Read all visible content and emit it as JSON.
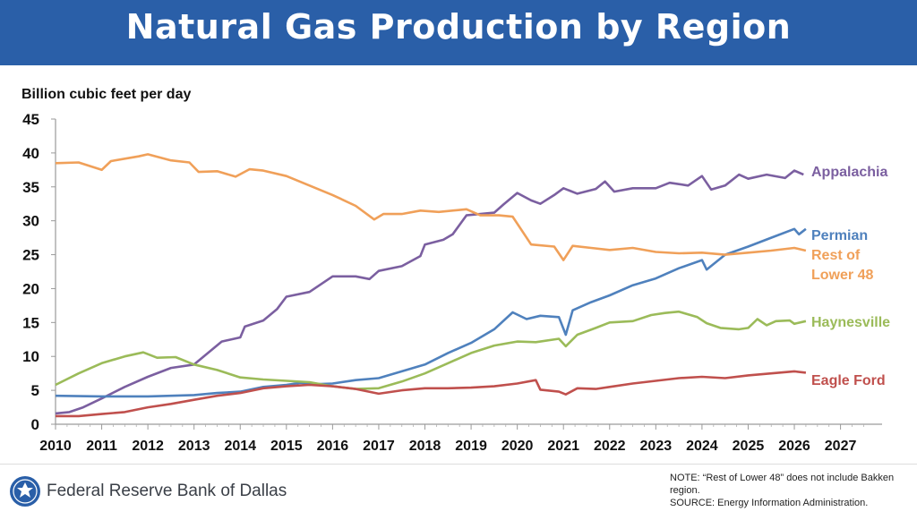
{
  "header": {
    "title": "Natural Gas Production by Region"
  },
  "footer": {
    "org": "Federal Reserve Bank of Dallas",
    "note": "NOTE: “Rest of Lower 48” does not include Bakken region.",
    "source": "SOURCE: Energy Information Administration."
  },
  "colors": {
    "banner": "#2a5fa8",
    "appalachia": "#7b5fa0",
    "permian": "#4f81bd",
    "rest_of_lower_48": "#f0a059",
    "haynesville": "#9bbb59",
    "eagle_ford": "#c0504d"
  },
  "chart_data": {
    "type": "line",
    "title": "Natural Gas Production by Region",
    "ylabel": "Billion cubic feet per day",
    "xlabel": "",
    "xlim": [
      2010,
      2027.9
    ],
    "ylim": [
      0,
      45
    ],
    "x_ticks": [
      "2010",
      "2011",
      "2012",
      "2013",
      "2014",
      "2015",
      "2016",
      "2017",
      "2018",
      "2019",
      "2020",
      "2021",
      "2022",
      "2023",
      "2024",
      "2025",
      "2026",
      "2027"
    ],
    "y_ticks": [
      "0",
      "5",
      "10",
      "15",
      "20",
      "25",
      "30",
      "35",
      "40",
      "45"
    ],
    "grid": false,
    "legend": "direct labels at right end of lines",
    "series": [
      {
        "name": "Appalachia",
        "label_lines": [
          "Appalachia"
        ],
        "color_key": "appalachia",
        "points": [
          [
            2010,
            1.6
          ],
          [
            2010.3,
            1.8
          ],
          [
            2010.6,
            2.5
          ],
          [
            2011,
            3.8
          ],
          [
            2011.5,
            5.5
          ],
          [
            2012,
            7.0
          ],
          [
            2012.5,
            8.3
          ],
          [
            2013,
            8.8
          ],
          [
            2013.3,
            10.5
          ],
          [
            2013.6,
            12.2
          ],
          [
            2014,
            12.8
          ],
          [
            2014.1,
            14.4
          ],
          [
            2014.5,
            15.3
          ],
          [
            2014.8,
            17.0
          ],
          [
            2015,
            18.8
          ],
          [
            2015.5,
            19.5
          ],
          [
            2016,
            21.8
          ],
          [
            2016.5,
            21.8
          ],
          [
            2016.8,
            21.4
          ],
          [
            2017,
            22.6
          ],
          [
            2017.5,
            23.3
          ],
          [
            2017.9,
            24.8
          ],
          [
            2018,
            26.5
          ],
          [
            2018.4,
            27.2
          ],
          [
            2018.6,
            28.0
          ],
          [
            2018.9,
            30.8
          ],
          [
            2019.2,
            31.0
          ],
          [
            2019.5,
            31.2
          ],
          [
            2019.7,
            32.4
          ],
          [
            2020,
            34.1
          ],
          [
            2020.3,
            33.0
          ],
          [
            2020.5,
            32.5
          ],
          [
            2020.8,
            33.8
          ],
          [
            2021,
            34.8
          ],
          [
            2021.3,
            34.0
          ],
          [
            2021.7,
            34.7
          ],
          [
            2021.9,
            35.8
          ],
          [
            2022.1,
            34.3
          ],
          [
            2022.5,
            34.8
          ],
          [
            2023,
            34.8
          ],
          [
            2023.3,
            35.6
          ],
          [
            2023.7,
            35.2
          ],
          [
            2024,
            36.6
          ],
          [
            2024.2,
            34.6
          ],
          [
            2024.5,
            35.2
          ],
          [
            2024.8,
            36.8
          ],
          [
            2025,
            36.2
          ],
          [
            2025.4,
            36.8
          ],
          [
            2025.8,
            36.3
          ],
          [
            2026,
            37.4
          ],
          [
            2026.2,
            36.8
          ]
        ]
      },
      {
        "name": "Permian",
        "label_lines": [
          "Permian"
        ],
        "color_key": "permian",
        "points": [
          [
            2010,
            4.2
          ],
          [
            2011,
            4.1
          ],
          [
            2012,
            4.1
          ],
          [
            2013,
            4.3
          ],
          [
            2013.5,
            4.6
          ],
          [
            2014,
            4.8
          ],
          [
            2014.5,
            5.5
          ],
          [
            2015,
            5.8
          ],
          [
            2015.3,
            6.1
          ],
          [
            2015.6,
            5.9
          ],
          [
            2016,
            6.0
          ],
          [
            2016.5,
            6.5
          ],
          [
            2017,
            6.8
          ],
          [
            2017.5,
            7.8
          ],
          [
            2018,
            8.8
          ],
          [
            2018.5,
            10.5
          ],
          [
            2019,
            12.0
          ],
          [
            2019.5,
            14.0
          ],
          [
            2019.9,
            16.5
          ],
          [
            2020.2,
            15.5
          ],
          [
            2020.5,
            16.0
          ],
          [
            2020.9,
            15.8
          ],
          [
            2021.05,
            13.2
          ],
          [
            2021.2,
            16.8
          ],
          [
            2021.6,
            18.0
          ],
          [
            2022,
            19.0
          ],
          [
            2022.5,
            20.5
          ],
          [
            2023,
            21.5
          ],
          [
            2023.5,
            23.0
          ],
          [
            2024,
            24.2
          ],
          [
            2024.1,
            22.8
          ],
          [
            2024.5,
            25.0
          ],
          [
            2025,
            26.2
          ],
          [
            2025.5,
            27.5
          ],
          [
            2026,
            28.8
          ],
          [
            2026.1,
            28.0
          ],
          [
            2026.25,
            28.8
          ]
        ]
      },
      {
        "name": "Rest of Lower 48",
        "label_lines": [
          "Rest of",
          "Lower 48"
        ],
        "color_key": "rest_of_lower_48",
        "points": [
          [
            2010,
            38.5
          ],
          [
            2010.5,
            38.6
          ],
          [
            2011,
            37.5
          ],
          [
            2011.2,
            38.8
          ],
          [
            2011.8,
            39.5
          ],
          [
            2012,
            39.8
          ],
          [
            2012.5,
            38.9
          ],
          [
            2012.9,
            38.6
          ],
          [
            2013.1,
            37.2
          ],
          [
            2013.5,
            37.3
          ],
          [
            2013.9,
            36.5
          ],
          [
            2014.2,
            37.6
          ],
          [
            2014.5,
            37.4
          ],
          [
            2015,
            36.6
          ],
          [
            2015.5,
            35.2
          ],
          [
            2016,
            33.8
          ],
          [
            2016.5,
            32.2
          ],
          [
            2016.9,
            30.2
          ],
          [
            2017.1,
            31.0
          ],
          [
            2017.5,
            31.0
          ],
          [
            2017.9,
            31.5
          ],
          [
            2018.3,
            31.3
          ],
          [
            2018.9,
            31.7
          ],
          [
            2019.2,
            30.8
          ],
          [
            2019.6,
            30.8
          ],
          [
            2019.9,
            30.6
          ],
          [
            2020.3,
            26.5
          ],
          [
            2020.8,
            26.2
          ],
          [
            2021,
            24.2
          ],
          [
            2021.2,
            26.3
          ],
          [
            2021.6,
            26.0
          ],
          [
            2022,
            25.7
          ],
          [
            2022.5,
            26.0
          ],
          [
            2023,
            25.4
          ],
          [
            2023.5,
            25.2
          ],
          [
            2024,
            25.3
          ],
          [
            2024.5,
            25.0
          ],
          [
            2025,
            25.3
          ],
          [
            2025.5,
            25.6
          ],
          [
            2026,
            26.0
          ],
          [
            2026.25,
            25.6
          ]
        ]
      },
      {
        "name": "Haynesville",
        "label_lines": [
          "Haynesville"
        ],
        "color_key": "haynesville",
        "points": [
          [
            2010,
            5.8
          ],
          [
            2010.5,
            7.5
          ],
          [
            2011,
            9.0
          ],
          [
            2011.5,
            10.0
          ],
          [
            2011.9,
            10.6
          ],
          [
            2012.2,
            9.8
          ],
          [
            2012.6,
            9.9
          ],
          [
            2013,
            8.8
          ],
          [
            2013.5,
            8.0
          ],
          [
            2014,
            6.9
          ],
          [
            2014.5,
            6.6
          ],
          [
            2015,
            6.4
          ],
          [
            2015.5,
            6.2
          ],
          [
            2016,
            5.6
          ],
          [
            2016.5,
            5.2
          ],
          [
            2017,
            5.3
          ],
          [
            2017.5,
            6.3
          ],
          [
            2018,
            7.5
          ],
          [
            2018.5,
            9.0
          ],
          [
            2019,
            10.5
          ],
          [
            2019.5,
            11.6
          ],
          [
            2020,
            12.2
          ],
          [
            2020.4,
            12.1
          ],
          [
            2020.9,
            12.6
          ],
          [
            2021.05,
            11.5
          ],
          [
            2021.3,
            13.2
          ],
          [
            2021.7,
            14.2
          ],
          [
            2022,
            15.0
          ],
          [
            2022.5,
            15.2
          ],
          [
            2022.9,
            16.1
          ],
          [
            2023.2,
            16.4
          ],
          [
            2023.5,
            16.6
          ],
          [
            2023.9,
            15.8
          ],
          [
            2024.1,
            14.9
          ],
          [
            2024.4,
            14.2
          ],
          [
            2024.8,
            14.0
          ],
          [
            2025,
            14.2
          ],
          [
            2025.2,
            15.5
          ],
          [
            2025.4,
            14.6
          ],
          [
            2025.6,
            15.2
          ],
          [
            2025.9,
            15.3
          ],
          [
            2026,
            14.8
          ],
          [
            2026.25,
            15.2
          ]
        ]
      },
      {
        "name": "Eagle Ford",
        "label_lines": [
          "Eagle Ford"
        ],
        "color_key": "eagle_ford",
        "points": [
          [
            2010,
            1.2
          ],
          [
            2010.5,
            1.2
          ],
          [
            2011,
            1.5
          ],
          [
            2011.5,
            1.8
          ],
          [
            2012,
            2.5
          ],
          [
            2012.5,
            3.0
          ],
          [
            2013,
            3.6
          ],
          [
            2013.5,
            4.2
          ],
          [
            2014,
            4.6
          ],
          [
            2014.5,
            5.3
          ],
          [
            2015,
            5.6
          ],
          [
            2015.5,
            5.8
          ],
          [
            2016,
            5.6
          ],
          [
            2016.5,
            5.2
          ],
          [
            2017,
            4.5
          ],
          [
            2017.5,
            5.0
          ],
          [
            2018,
            5.3
          ],
          [
            2018.5,
            5.3
          ],
          [
            2019,
            5.4
          ],
          [
            2019.5,
            5.6
          ],
          [
            2020,
            6.0
          ],
          [
            2020.4,
            6.5
          ],
          [
            2020.5,
            5.1
          ],
          [
            2020.9,
            4.8
          ],
          [
            2021.05,
            4.4
          ],
          [
            2021.3,
            5.3
          ],
          [
            2021.7,
            5.2
          ],
          [
            2022,
            5.5
          ],
          [
            2022.5,
            6.0
          ],
          [
            2023,
            6.4
          ],
          [
            2023.5,
            6.8
          ],
          [
            2024,
            7.0
          ],
          [
            2024.5,
            6.8
          ],
          [
            2025,
            7.2
          ],
          [
            2025.5,
            7.5
          ],
          [
            2026,
            7.8
          ],
          [
            2026.25,
            7.6
          ]
        ]
      }
    ]
  }
}
